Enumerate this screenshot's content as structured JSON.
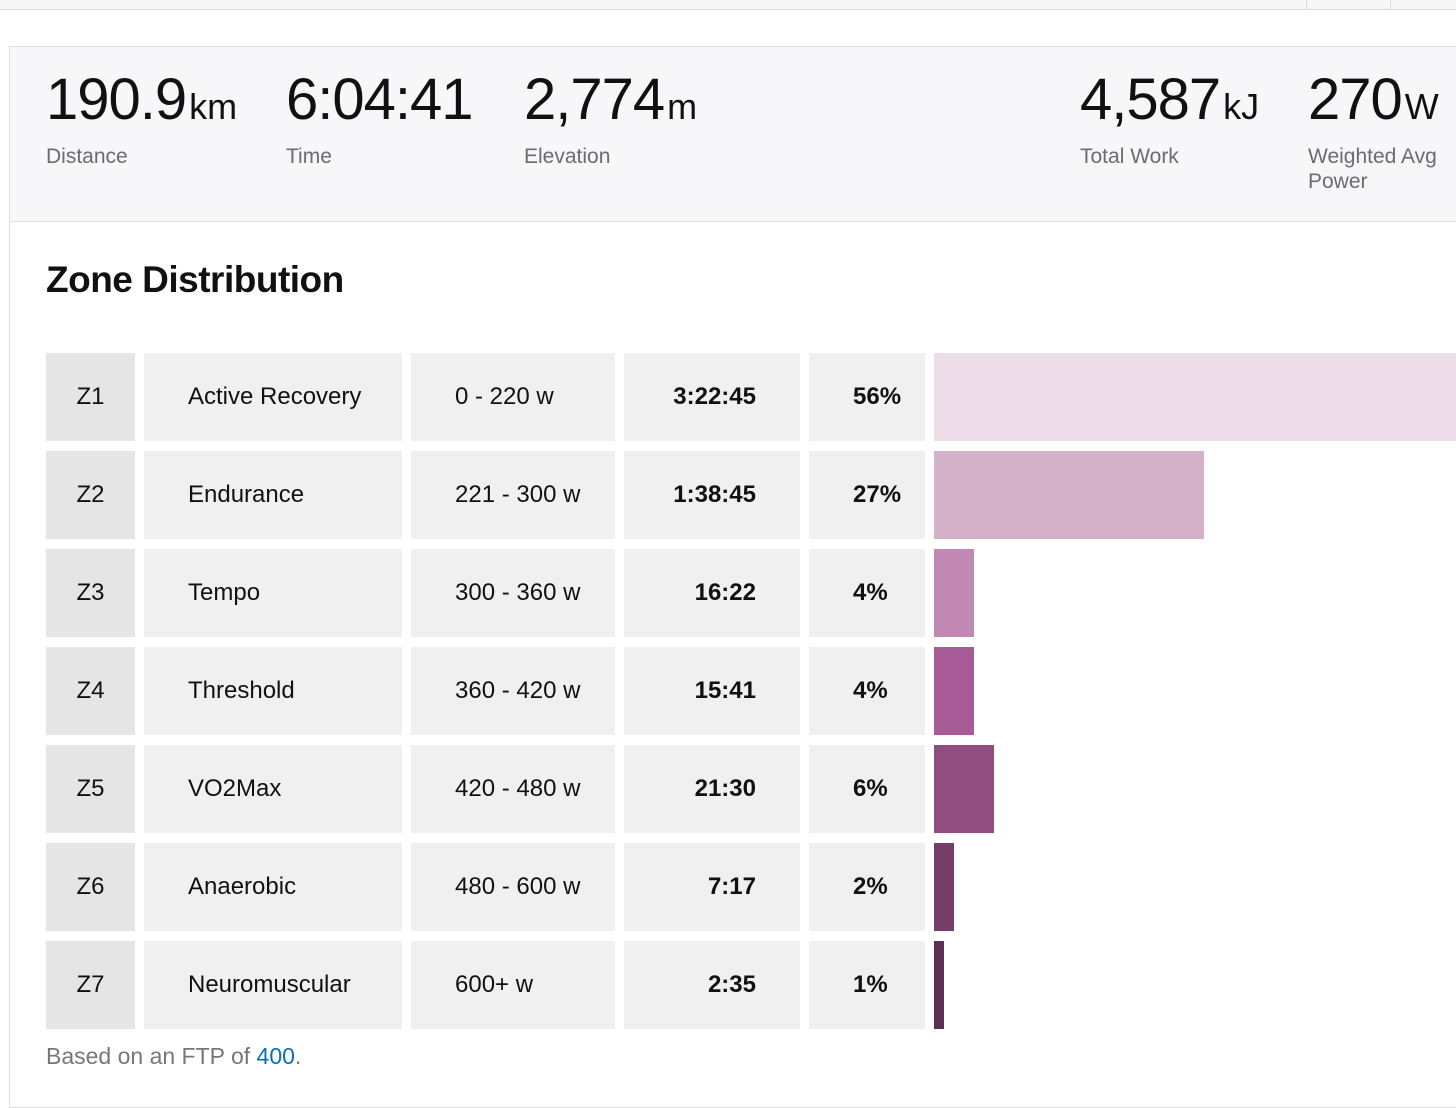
{
  "stats": [
    {
      "value": "190.9",
      "unit": "km",
      "label": "Distance"
    },
    {
      "value": "6:04:41",
      "unit": "",
      "label": "Time"
    },
    {
      "value": "2,774",
      "unit": "m",
      "label": "Elevation"
    },
    {
      "value": "4,587",
      "unit": "kJ",
      "label": "Total Work"
    },
    {
      "value": "270",
      "unit": "W",
      "label": "Weighted Avg Power"
    }
  ],
  "zone_distribution": {
    "title": "Zone Distribution",
    "zones": [
      {
        "zone": "Z1",
        "name": "Active Recovery",
        "range": "0 - 220 w",
        "time": "3:22:45",
        "percent": "56%",
        "share": 56,
        "color": "#eddde8"
      },
      {
        "zone": "Z2",
        "name": "Endurance",
        "range": "221 - 300 w",
        "time": "1:38:45",
        "percent": "27%",
        "share": 27,
        "color": "#d4b0c9"
      },
      {
        "zone": "Z3",
        "name": "Tempo",
        "range": "300 - 360 w",
        "time": "16:22",
        "percent": "4%",
        "share": 4,
        "color": "#c088b3"
      },
      {
        "zone": "Z4",
        "name": "Threshold",
        "range": "360 - 420 w",
        "time": "15:41",
        "percent": "4%",
        "share": 4,
        "color": "#a85c97"
      },
      {
        "zone": "Z5",
        "name": "VO2Max",
        "range": "420 - 480 w",
        "time": "21:30",
        "percent": "6%",
        "share": 6,
        "color": "#8f4d80"
      },
      {
        "zone": "Z6",
        "name": "Anaerobic",
        "range": "480 - 600 w",
        "time": "7:17",
        "percent": "2%",
        "share": 2,
        "color": "#753e69"
      },
      {
        "zone": "Z7",
        "name": "Neuromuscular",
        "range": "600+ w",
        "time": "2:35",
        "percent": "1%",
        "share": 1,
        "color": "#5e3154"
      }
    ]
  },
  "footnote": {
    "prefix": "Based on an FTP of ",
    "ftp": "400",
    "suffix": "."
  }
}
